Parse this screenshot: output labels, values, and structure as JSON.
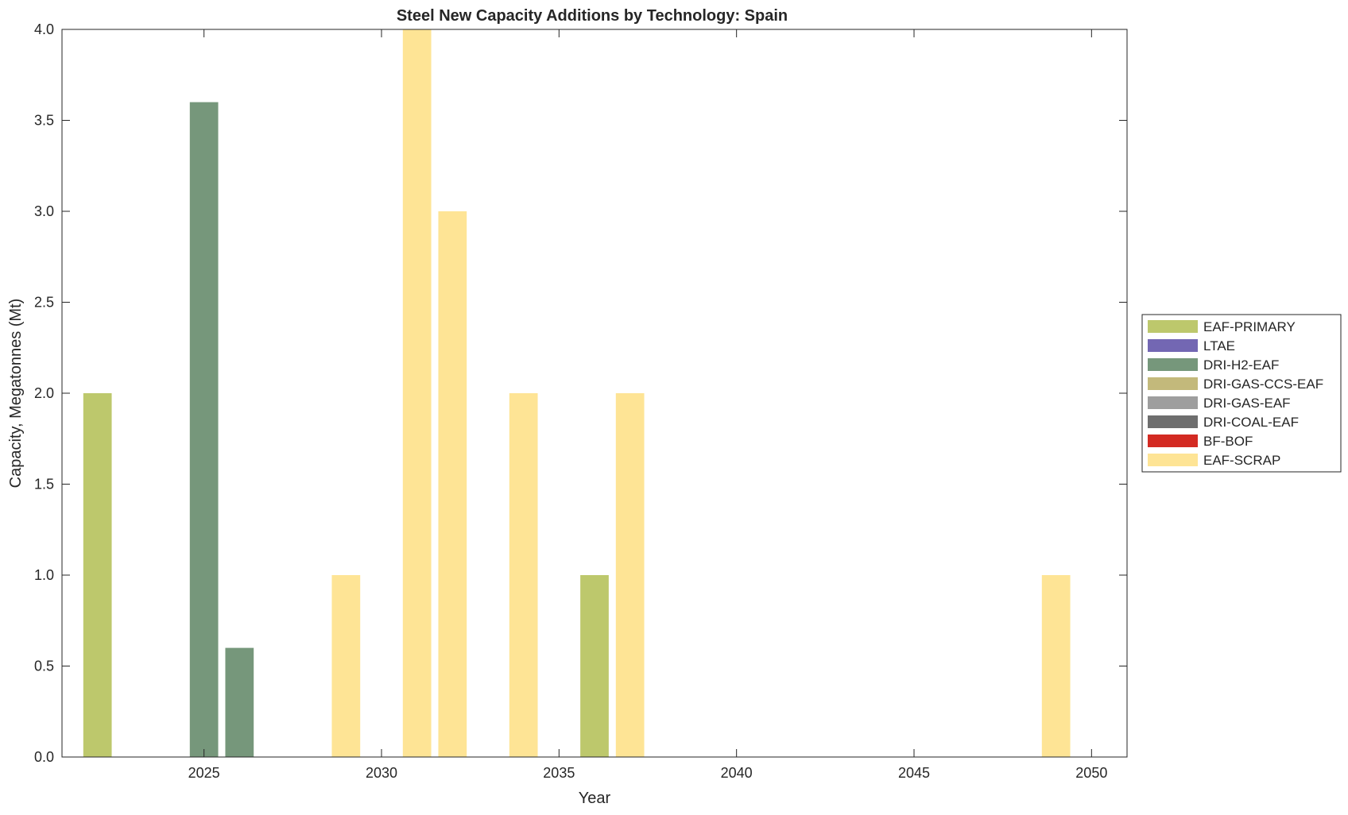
{
  "chart_data": {
    "type": "bar",
    "title": "Steel New Capacity Additions by Technology: Spain",
    "xlabel": "Year",
    "ylabel": "Capacity, Megatonnes (Mt)",
    "xlim": [
      2021,
      2051
    ],
    "ylim": [
      0,
      4
    ],
    "xticks": [
      2025,
      2030,
      2035,
      2040,
      2045,
      2050
    ],
    "yticks": [
      0,
      0.5,
      1,
      1.5,
      2,
      2.5,
      3,
      3.5,
      4
    ],
    "ytick_labels": [
      "0.0",
      "0.5",
      "1.0",
      "1.5",
      "2.0",
      "2.5",
      "3.0",
      "3.5",
      "4.0"
    ],
    "grid": false,
    "legend_position": "right-outside",
    "series": [
      {
        "name": "EAF-PRIMARY",
        "color": "#bdc86c",
        "points": [
          {
            "x": 2022,
            "y": 2
          },
          {
            "x": 2036,
            "y": 1
          }
        ]
      },
      {
        "name": "LTAE",
        "color": "#7367b3",
        "points": []
      },
      {
        "name": "DRI-H2-EAF",
        "color": "#76977b",
        "points": [
          {
            "x": 2025,
            "y": 3.6
          },
          {
            "x": 2026,
            "y": 0.6
          }
        ]
      },
      {
        "name": "DRI-GAS-CCS-EAF",
        "color": "#c3b97b",
        "points": []
      },
      {
        "name": "DRI-GAS-EAF",
        "color": "#9e9e9e",
        "points": []
      },
      {
        "name": "DRI-COAL-EAF",
        "color": "#6e6e6e",
        "points": []
      },
      {
        "name": "BF-BOF",
        "color": "#d32a22",
        "points": []
      },
      {
        "name": "EAF-SCRAP",
        "color": "#fee495",
        "points": [
          {
            "x": 2029,
            "y": 1
          },
          {
            "x": 2031,
            "y": 4
          },
          {
            "x": 2032,
            "y": 3
          },
          {
            "x": 2034,
            "y": 2
          },
          {
            "x": 2037,
            "y": 2
          },
          {
            "x": 2049,
            "y": 1
          }
        ]
      }
    ]
  }
}
